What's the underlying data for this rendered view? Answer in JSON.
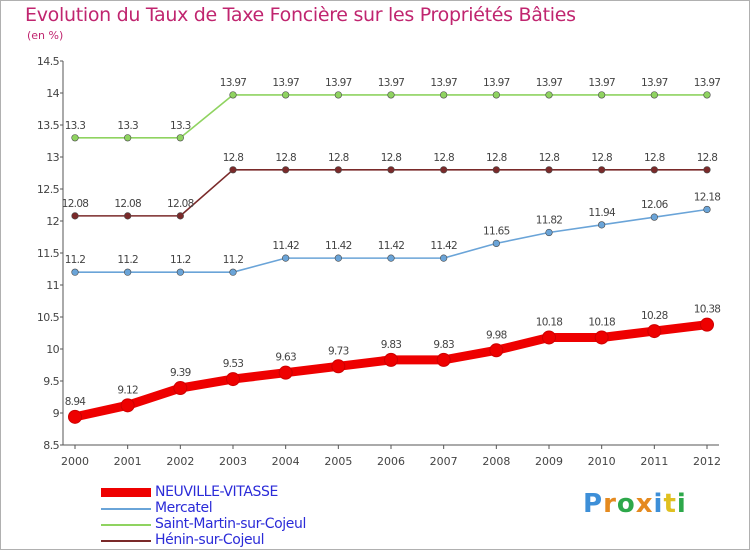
{
  "title": "Evolution du Taux de Taxe Foncière sur les Propriétés Bâties",
  "unit_label": "(en %)",
  "logo": {
    "letters": [
      "P",
      "r",
      "o",
      "x",
      "i",
      "t",
      "i"
    ],
    "colors": [
      "#3d8fd8",
      "#e58a1f",
      "#2da84a",
      "#e58a1f",
      "#3d8fd8",
      "#e0c020",
      "#2da84a"
    ]
  },
  "chart_data": {
    "type": "line",
    "title": "Evolution du Taux de Taxe Foncière sur les Propriétés Bâties",
    "ylabel": "(en %)",
    "xlabel": "",
    "x": [
      "2000",
      "2001",
      "2002",
      "2003",
      "2004",
      "2005",
      "2006",
      "2007",
      "2008",
      "2009",
      "2010",
      "2011",
      "2012"
    ],
    "ylim": [
      8.5,
      14.5
    ],
    "yticks": [
      "8.5",
      "9",
      "9.5",
      "10",
      "10.5",
      "11",
      "11.5",
      "12",
      "12.5",
      "13",
      "13.5",
      "14",
      "14.5"
    ],
    "grid": false,
    "legend_position": "bottom-left",
    "series": [
      {
        "name": "NEUVILLE-VITASSE",
        "color": "#ee0000",
        "values": [
          8.94,
          9.12,
          9.39,
          9.53,
          9.63,
          9.73,
          9.83,
          9.83,
          9.98,
          10.18,
          10.18,
          10.28,
          10.38
        ],
        "labels": [
          "8.94",
          "9.12",
          "9.39",
          "9.53",
          "9.63",
          "9.73",
          "9.83",
          "9.83",
          "9.98",
          "10.18",
          "10.18",
          "10.28",
          "10.38"
        ]
      },
      {
        "name": "Mercatel",
        "color": "#6aa4d8",
        "values": [
          11.2,
          11.2,
          11.2,
          11.2,
          11.42,
          11.42,
          11.42,
          11.42,
          11.65,
          11.82,
          11.94,
          12.06,
          12.18
        ],
        "labels": [
          "11.2",
          "11.2",
          "11.2",
          "11.2",
          "11.42",
          "11.42",
          "11.42",
          "11.42",
          "11.65",
          "11.82",
          "11.94",
          "12.06",
          "12.18"
        ]
      },
      {
        "name": "Saint-Martin-sur-Cojeul",
        "color": "#8fd360",
        "values": [
          13.3,
          13.3,
          13.3,
          13.97,
          13.97,
          13.97,
          13.97,
          13.97,
          13.97,
          13.97,
          13.97,
          13.97,
          13.97
        ],
        "labels": [
          "13.3",
          "13.3",
          "13.3",
          "13.97",
          "13.97",
          "13.97",
          "13.97",
          "13.97",
          "13.97",
          "13.97",
          "13.97",
          "13.97",
          "13.97"
        ]
      },
      {
        "name": "Hénin-sur-Cojeul",
        "color": "#7a2a2a",
        "values": [
          12.08,
          12.08,
          12.08,
          12.8,
          12.8,
          12.8,
          12.8,
          12.8,
          12.8,
          12.8,
          12.8,
          12.8,
          12.8
        ],
        "labels": [
          "12.08",
          "12.08",
          "12.08",
          "12.8",
          "12.8",
          "12.8",
          "12.8",
          "12.8",
          "12.8",
          "12.8",
          "12.8",
          "12.8",
          "12.8"
        ]
      }
    ]
  }
}
